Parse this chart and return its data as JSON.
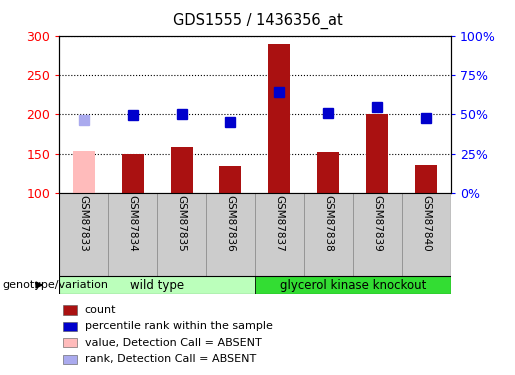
{
  "title": "GDS1555 / 1436356_at",
  "samples": [
    "GSM87833",
    "GSM87834",
    "GSM87835",
    "GSM87836",
    "GSM87837",
    "GSM87838",
    "GSM87839",
    "GSM87840"
  ],
  "bar_values": [
    153,
    150,
    158,
    135,
    290,
    152,
    200,
    136
  ],
  "bar_absent": [
    true,
    false,
    false,
    false,
    false,
    false,
    false,
    false
  ],
  "rank_values": [
    193,
    199,
    201,
    190,
    228,
    202,
    210,
    195
  ],
  "rank_absent": [
    true,
    false,
    false,
    false,
    false,
    false,
    false,
    false
  ],
  "ymin": 100,
  "ymax": 300,
  "yticks": [
    100,
    150,
    200,
    250,
    300
  ],
  "y2labels": [
    "0%",
    "25%",
    "50%",
    "75%",
    "100%"
  ],
  "bar_color": "#aa1111",
  "bar_absent_color": "#ffbbbb",
  "rank_color": "#0000cc",
  "rank_absent_color": "#aaaaee",
  "groups": [
    {
      "label": "wild type",
      "start": 0,
      "end": 4,
      "color": "#bbffbb"
    },
    {
      "label": "glycerol kinase knockout",
      "start": 4,
      "end": 8,
      "color": "#33dd33"
    }
  ],
  "group_header": "genotype/variation",
  "legend_items": [
    {
      "label": "count",
      "color": "#aa1111"
    },
    {
      "label": "percentile rank within the sample",
      "color": "#0000cc"
    },
    {
      "label": "value, Detection Call = ABSENT",
      "color": "#ffbbbb"
    },
    {
      "label": "rank, Detection Call = ABSENT",
      "color": "#aaaaee"
    }
  ],
  "bar_width": 0.45,
  "rank_marker_size": 7,
  "figw": 5.15,
  "figh": 3.75,
  "dpi": 100
}
